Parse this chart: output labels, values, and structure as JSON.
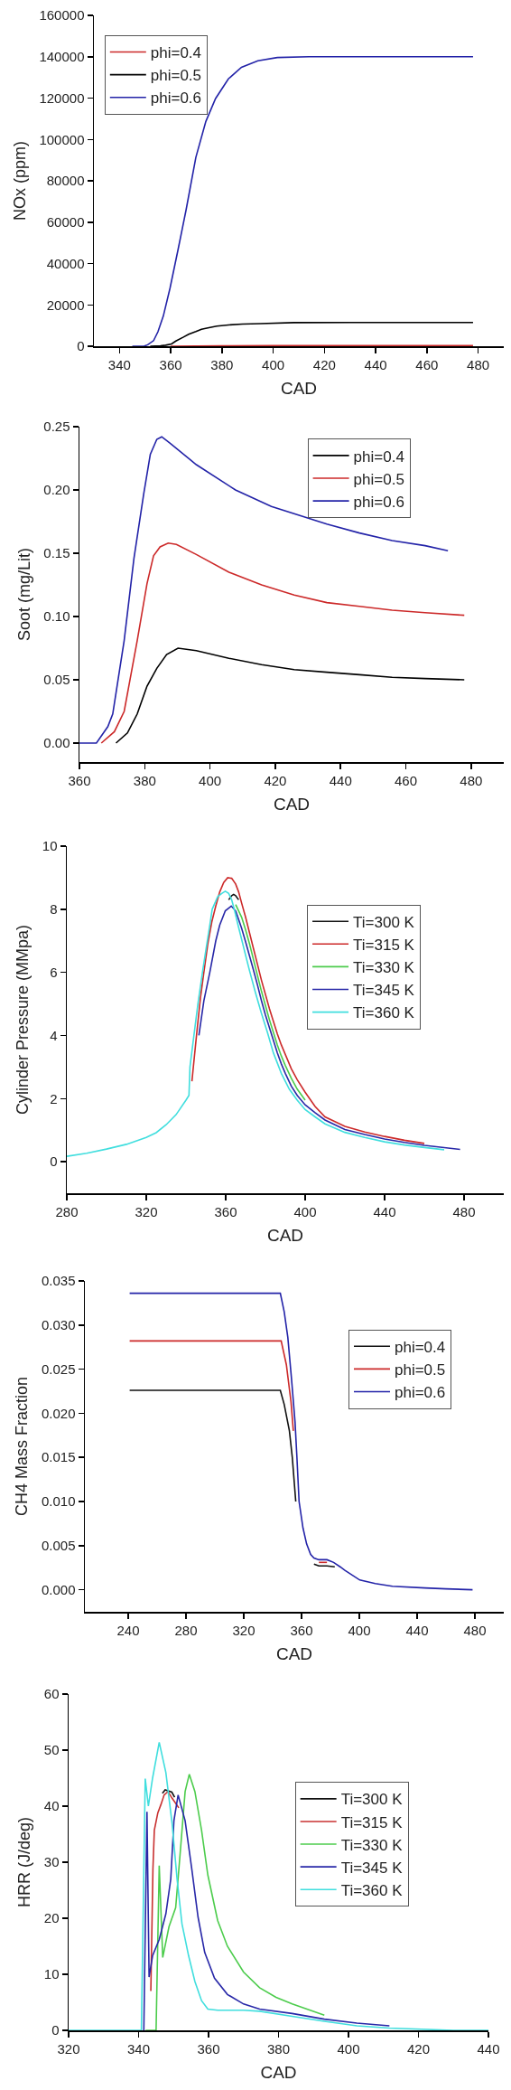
{
  "chart_data": [
    {
      "type": "line",
      "xlabel": "CAD",
      "ylabel": "NOx (ppm)",
      "xlim": [
        330,
        490
      ],
      "xticks": [
        340,
        360,
        380,
        400,
        420,
        440,
        460,
        480
      ],
      "ylim": [
        0,
        160000
      ],
      "yticks": [
        0,
        20000,
        40000,
        60000,
        80000,
        100000,
        120000,
        140000,
        160000
      ],
      "legend": "top left",
      "series": [
        {
          "name": "phi=0.4",
          "color": "#cc2929",
          "x": [
            360,
            370,
            380,
            400,
            420,
            440,
            460,
            478
          ],
          "values": [
            0,
            100,
            200,
            300,
            300,
            300,
            300,
            300
          ]
        },
        {
          "name": "phi=0.5",
          "color": "#000000",
          "x": [
            352,
            356,
            358,
            360.3,
            362,
            364.8,
            367,
            369.8,
            372,
            374.9,
            378,
            382.5,
            388,
            395,
            408,
            430,
            460,
            478
          ],
          "values": [
            0,
            200,
            500,
            1100,
            2500,
            4300,
            5800,
            7100,
            8200,
            9000,
            9700,
            10300,
            10700,
            10900,
            11400,
            11500,
            11500,
            11500
          ]
        },
        {
          "name": "phi=0.6",
          "color": "#2323a8",
          "x": [
            345,
            349.5,
            351,
            353.3,
            355,
            357.1,
            359.7,
            362.9,
            366,
            369.8,
            373.7,
            377.5,
            382.5,
            387.6,
            394,
            401.6,
            414,
            440,
            478
          ],
          "values": [
            0,
            0,
            700,
            2700,
            7000,
            14600,
            28000,
            47000,
            66000,
            91300,
            108700,
            119800,
            129300,
            134900,
            138000,
            139600,
            140000,
            140000,
            140000
          ]
        }
      ]
    },
    {
      "type": "line",
      "xlabel": "CAD",
      "ylabel": "Soot (mg/Lit)",
      "xlim": [
        360,
        490
      ],
      "xticks": [
        360,
        380,
        400,
        420,
        440,
        460,
        480
      ],
      "ylim": [
        -0.015,
        0.25
      ],
      "yticks": [
        {
          "value": 0,
          "label": "0.00"
        },
        {
          "value": 0.05,
          "label": "0.05"
        },
        {
          "value": 0.1,
          "label": "0.10"
        },
        {
          "value": 0.15,
          "label": "0.15"
        },
        {
          "value": 0.2,
          "label": "0.20"
        },
        {
          "value": 0.25,
          "label": "0.25"
        }
      ],
      "legend": "top right",
      "series": [
        {
          "name": "phi=0.4",
          "color": "#000000",
          "x": [
            371.2,
            374.7,
            377.7,
            380.7,
            383.7,
            386.7,
            390.2,
            395.8,
            405.8,
            415.8,
            425.8,
            435.8,
            445.8,
            455.8,
            465.9,
            477.9
          ],
          "values": [
            0,
            0.008,
            0.023,
            0.045,
            0.059,
            0.07,
            0.075,
            0.073,
            0.067,
            0.062,
            0.058,
            0.056,
            0.054,
            0.052,
            0.051,
            0.05
          ]
        },
        {
          "name": "phi=0.5",
          "color": "#cc2929",
          "x": [
            366.7,
            370.7,
            373.7,
            377.7,
            380.7,
            382.7,
            384.7,
            387.2,
            389.7,
            395.8,
            405.8,
            415.8,
            425.8,
            435.8,
            445.8,
            455.8,
            465.9,
            477.9
          ],
          "values": [
            0,
            0.009,
            0.025,
            0.081,
            0.126,
            0.148,
            0.155,
            0.158,
            0.157,
            0.149,
            0.135,
            0.125,
            0.117,
            0.111,
            0.108,
            0.105,
            0.103,
            0.101
          ]
        },
        {
          "name": "phi=0.6",
          "color": "#2323a8",
          "x": [
            360,
            365.2,
            368.7,
            370.2,
            373.7,
            376.7,
            379.7,
            381.7,
            383.7,
            385.2,
            387.7,
            395.8,
            407.8,
            418.8,
            435.8,
            445.8,
            455.8,
            465.9,
            472.9
          ],
          "values": [
            0,
            0,
            0.013,
            0.023,
            0.081,
            0.146,
            0.197,
            0.228,
            0.24,
            0.242,
            0.237,
            0.22,
            0.2,
            0.187,
            0.173,
            0.166,
            0.16,
            0.156,
            0.152
          ]
        }
      ]
    },
    {
      "type": "line",
      "xlabel": "CAD",
      "ylabel": "Cylinder Pressure (MMpa)",
      "xlim": [
        280,
        500
      ],
      "xticks": [
        280,
        320,
        360,
        400,
        440,
        480
      ],
      "ylim": [
        -1,
        10
      ],
      "yticks": [
        0,
        2,
        4,
        6,
        8,
        10
      ],
      "legend": "right",
      "series": [
        {
          "name": "Ti=300 K",
          "color": "#111111",
          "x": [
            361.5,
            363,
            364,
            365,
            366.5
          ],
          "values": [
            8.3,
            8.43,
            8.47,
            8.43,
            8.3
          ]
        },
        {
          "name": "Ti=315 K",
          "color": "#cc2929",
          "x": [
            343,
            343.5,
            345.3,
            347.3,
            349,
            351,
            353,
            355,
            357,
            359,
            361,
            363,
            365,
            366.5,
            368,
            370,
            372,
            374,
            376,
            378,
            380,
            382,
            384,
            386,
            388,
            390,
            393,
            396,
            400,
            405,
            410,
            420,
            430,
            440,
            450,
            460
          ],
          "values": [
            2.55,
            2.87,
            4.0,
            5.2,
            6.0,
            6.9,
            7.6,
            8.1,
            8.55,
            8.85,
            9.0,
            8.98,
            8.8,
            8.55,
            8.2,
            7.75,
            7.25,
            6.75,
            6.25,
            5.75,
            5.3,
            4.85,
            4.45,
            4.05,
            3.7,
            3.4,
            2.95,
            2.6,
            2.2,
            1.75,
            1.42,
            1.12,
            0.94,
            0.8,
            0.68,
            0.58
          ]
        },
        {
          "name": "Ti=330 K",
          "color": "#4ccc4c",
          "x": [
            365,
            366.5,
            368,
            370,
            372,
            374,
            376,
            378,
            380,
            382,
            384,
            386,
            388,
            390,
            393,
            396,
            400
          ],
          "values": [
            8.15,
            7.95,
            7.75,
            7.35,
            6.9,
            6.4,
            5.9,
            5.4,
            4.95,
            4.5,
            4.1,
            3.7,
            3.35,
            3.05,
            2.65,
            2.3,
            1.95
          ]
        },
        {
          "name": "Ti=345 K",
          "color": "#2828a8",
          "x": [
            346.5,
            349,
            352,
            355,
            357,
            359.8,
            362.8,
            365,
            368,
            370,
            372,
            374,
            376,
            378,
            380,
            382,
            384,
            386,
            388,
            390,
            393,
            396,
            400,
            405,
            410,
            420,
            430,
            440,
            450,
            460,
            472,
            478
          ],
          "values": [
            4.0,
            5.1,
            6.0,
            7.0,
            7.5,
            7.95,
            8.1,
            7.95,
            7.4,
            6.97,
            6.52,
            6.07,
            5.6,
            5.1,
            4.65,
            4.25,
            3.85,
            3.45,
            3.1,
            2.8,
            2.4,
            2.1,
            1.8,
            1.55,
            1.32,
            1.02,
            0.86,
            0.72,
            0.61,
            0.52,
            0.43,
            0.39
          ]
        },
        {
          "name": "Ti=360 K",
          "color": "#40dede",
          "x": [
            280,
            290,
            300,
            310,
            320,
            325,
            330,
            335,
            340,
            341.5,
            342,
            344,
            346,
            348.3,
            350,
            352,
            353.2,
            356,
            358,
            359.8,
            361.5,
            363,
            364.5,
            366,
            368,
            370,
            372,
            375,
            378,
            381,
            384,
            388,
            392,
            396,
            400,
            405,
            410,
            420,
            430,
            440,
            450,
            460,
            470
          ],
          "values": [
            0.17,
            0.27,
            0.4,
            0.55,
            0.77,
            0.92,
            1.17,
            1.49,
            1.95,
            2.1,
            3.0,
            4.0,
            5.0,
            6.0,
            6.7,
            7.5,
            8.0,
            8.4,
            8.5,
            8.57,
            8.5,
            8.3,
            7.95,
            7.55,
            7.05,
            6.55,
            6.05,
            5.35,
            4.7,
            4.1,
            3.45,
            2.8,
            2.3,
            1.95,
            1.65,
            1.42,
            1.2,
            0.93,
            0.77,
            0.63,
            0.53,
            0.45,
            0.38
          ]
        }
      ]
    },
    {
      "type": "line",
      "xlabel": "CAD",
      "ylabel": "CH4 Mass Fraction",
      "xlim": [
        210,
        500
      ],
      "xticks": [
        240,
        280,
        320,
        360,
        400,
        440,
        480
      ],
      "ylim": [
        -0.0025,
        0.035
      ],
      "yticks": [
        {
          "value": 0,
          "label": "0.000"
        },
        {
          "value": 0.005,
          "label": "0.005"
        },
        {
          "value": 0.01,
          "label": "0.010"
        },
        {
          "value": 0.015,
          "label": "0.015"
        },
        {
          "value": 0.02,
          "label": "0.020"
        },
        {
          "value": 0.025,
          "label": "0.025"
        },
        {
          "value": 0.03,
          "label": "0.030"
        },
        {
          "value": 0.035,
          "label": "0.035"
        }
      ],
      "legend": "right",
      "series": [
        {
          "name": "phi=0.4",
          "color": "#111111",
          "x": [
            241,
            345.3,
            348,
            351.6,
            353.6,
            356,
            360,
            368.6,
            372,
            377.6,
            383
          ],
          "values": [
            0.0226,
            0.0226,
            0.021,
            0.018,
            0.015,
            0.01,
            null,
            0.0029,
            0.0027,
            0.0027,
            0.0026
          ]
        },
        {
          "name": "phi=0.5",
          "color": "#cc2929",
          "x": [
            241,
            345.9,
            349.5,
            352.7,
            354.3,
            360,
            372,
            377.6
          ],
          "values": [
            0.0282,
            0.0282,
            0.0255,
            0.0213,
            0.018,
            null,
            0.0031,
            0.0031
          ]
        },
        {
          "name": "phi=0.6",
          "color": "#2323a8",
          "x": [
            241,
            345.3,
            348,
            350.5,
            353,
            355.5,
            356.8,
            358.3,
            361,
            363.5,
            366.3,
            368.6,
            372,
            377.6,
            382.2,
            386.7,
            390,
            400.3,
            411,
            422.9,
            445.5,
            460,
            478.4
          ],
          "values": [
            0.0336,
            0.0336,
            0.0315,
            0.0286,
            0.024,
            0.019,
            0.015,
            0.01,
            0.007,
            0.0052,
            0.004,
            0.0036,
            0.0034,
            0.0034,
            0.0031,
            0.0026,
            0.0022,
            0.0011,
            0.0007,
            0.0004,
            0.0002,
            0.0001,
            0
          ]
        }
      ]
    },
    {
      "type": "line",
      "xlabel": "CAD",
      "ylabel": "HRR (J/deg)",
      "xlim": [
        320,
        440
      ],
      "xticks": [
        320,
        340,
        360,
        380,
        400,
        420,
        440
      ],
      "ylim": [
        0,
        60
      ],
      "yticks": [
        0,
        10,
        20,
        30,
        40,
        50,
        60
      ],
      "legend": "right",
      "series": [
        {
          "name": "Ti=300 K",
          "color": "#111111",
          "x": [
            346.8,
            347.6,
            349.5,
            350.3
          ],
          "values": [
            42.3,
            42.9,
            42.5,
            41.6
          ]
        },
        {
          "name": "Ti=315 K",
          "color": "#c83030",
          "x": [
            343.5,
            344.1,
            344.5,
            345.5,
            346.4,
            347.3,
            348.4,
            349.6,
            351.5
          ],
          "values": [
            7,
            28.8,
            35.7,
            38.8,
            40.3,
            42,
            42.6,
            41.4,
            39.7
          ]
        },
        {
          "name": "Ti=330 K",
          "color": "#4ccc4c",
          "x": [
            342,
            345,
            345.9,
            346.9,
            348.7,
            350.6,
            351.9,
            353.3,
            354.5,
            356.1,
            358,
            359.8,
            362.6,
            365.4,
            370,
            374.6,
            379.3,
            383.9,
            393.1
          ],
          "values": [
            0,
            0,
            29.4,
            13,
            18.5,
            21.9,
            31.7,
            42.6,
            45.7,
            42.6,
            35.7,
            27.7,
            19.6,
            15,
            10.4,
            7.6,
            5.9,
            4.7,
            2.7
          ]
        },
        {
          "name": "Ti=345 K",
          "color": "#2828a8",
          "x": [
            341.5,
            342.4,
            343,
            344,
            345.9,
            347.8,
            349.2,
            350.1,
            351.3,
            353.3,
            355.2,
            357,
            358.9,
            361.7,
            365.4,
            370,
            374.6,
            383.9,
            393.1,
            402.4,
            411.7
          ],
          "values": [
            0,
            39,
            9.5,
            13.3,
            16.2,
            20.8,
            27,
            37.4,
            42,
            37.4,
            28.8,
            20.2,
            13.9,
            9.3,
            6.4,
            4.7,
            3.8,
            3.0,
            2.0,
            1.3,
            0.8
          ]
        },
        {
          "name": "Ti=360 K",
          "color": "#40dede",
          "x": [
            320,
            340.8,
            341.9,
            342.8,
            344,
            345.9,
            347.8,
            349.6,
            351,
            352.4,
            354.3,
            356.1,
            358,
            359.8,
            362.6,
            370,
            374.6,
            383.9,
            393.1,
            402.4,
            411.7,
            420.9,
            430,
            440
          ],
          "values": [
            0,
            0,
            44.9,
            40,
            45,
            51.4,
            46,
            36.8,
            27,
            19,
            13.3,
            8.7,
            5.3,
            3.8,
            3.6,
            3.6,
            3.4,
            2.5,
            1.6,
            0.8,
            0.4,
            0.2,
            0,
            0
          ]
        }
      ]
    }
  ]
}
